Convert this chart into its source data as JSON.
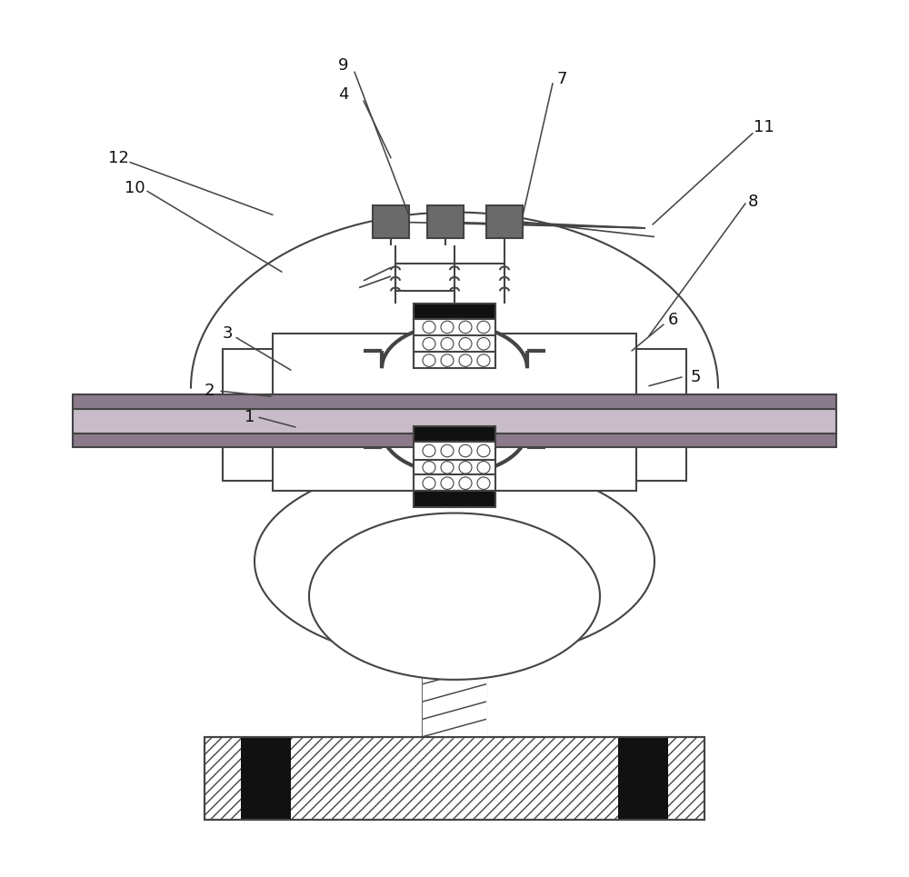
{
  "bg": "#ffffff",
  "lc": "#444444",
  "lw": 1.5,
  "dark_gray": "#707070",
  "light_gray": "#cccccc",
  "purple_dark": "#8a7a8a",
  "purple_light": "#c8bcc8",
  "black": "#111111",
  "label_fs": 13,
  "label_color": "#111111",
  "sq_gray": "#6a6a6a"
}
